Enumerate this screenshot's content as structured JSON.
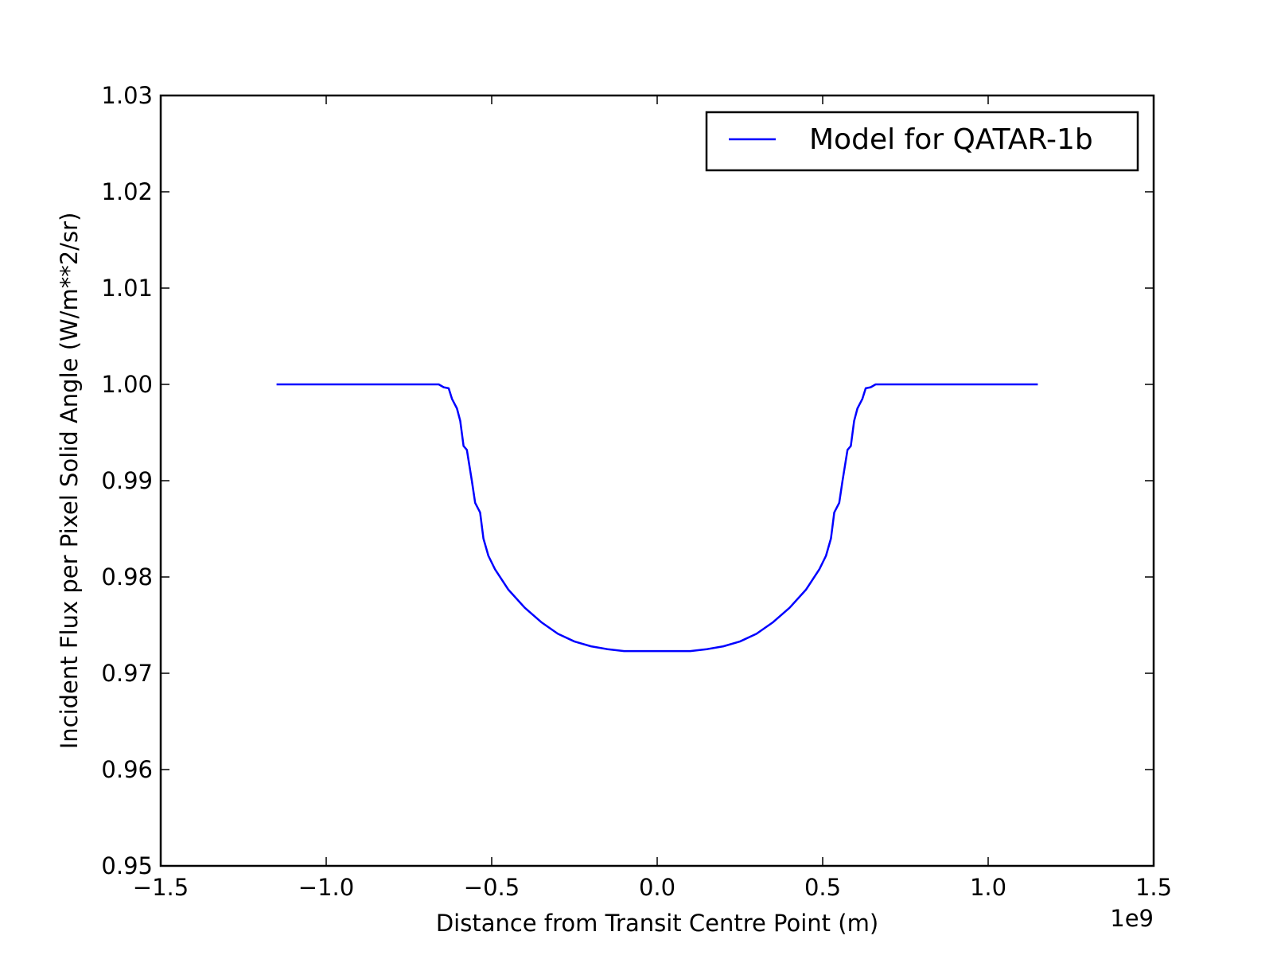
{
  "chart_data": {
    "type": "line",
    "title": "",
    "xlabel": "Distance from Transit Centre Point (m)",
    "ylabel": "Incident Flux per Pixel Solid Angle (W/m**2/sr)",
    "x_offset_text": "1e9",
    "x_scale": 1000000000,
    "xlim": [
      -1.5,
      1.5
    ],
    "ylim": [
      0.95,
      1.03
    ],
    "xticks": [
      -1.5,
      -1.0,
      -0.5,
      0.0,
      0.5,
      1.0,
      1.5
    ],
    "xtick_labels": [
      "−1.5",
      "−1.0",
      "−0.5",
      "0.0",
      "0.5",
      "1.0",
      "1.5"
    ],
    "yticks": [
      0.95,
      0.96,
      0.97,
      0.98,
      0.99,
      1.0,
      1.01,
      1.02,
      1.03
    ],
    "ytick_labels": [
      "0.95",
      "0.96",
      "0.97",
      "0.98",
      "0.99",
      "1.00",
      "1.01",
      "1.02",
      "1.03"
    ],
    "grid": false,
    "legend_position": "top-right",
    "series": [
      {
        "name": "Model for QATAR-1b",
        "color": "#0000ff",
        "x": [
          -1.15,
          -0.66,
          -0.645,
          -0.63,
          -0.62,
          -0.605,
          -0.595,
          -0.585,
          -0.575,
          -0.56,
          -0.55,
          -0.535,
          -0.525,
          -0.51,
          -0.49,
          -0.45,
          -0.4,
          -0.35,
          -0.3,
          -0.25,
          -0.2,
          -0.15,
          -0.1,
          -0.05,
          0.0,
          0.05,
          0.1,
          0.15,
          0.2,
          0.25,
          0.3,
          0.35,
          0.4,
          0.45,
          0.49,
          0.51,
          0.525,
          0.535,
          0.55,
          0.56,
          0.575,
          0.585,
          0.595,
          0.605,
          0.62,
          0.63,
          0.645,
          0.66,
          1.15
        ],
        "y": [
          1.0,
          1.0,
          0.9997,
          0.9996,
          0.9985,
          0.9975,
          0.9962,
          0.9936,
          0.9932,
          0.99,
          0.9877,
          0.9867,
          0.984,
          0.9822,
          0.9808,
          0.9787,
          0.9768,
          0.9753,
          0.9741,
          0.9733,
          0.9728,
          0.9725,
          0.9723,
          0.9723,
          0.9723,
          0.9723,
          0.9723,
          0.9725,
          0.9728,
          0.9733,
          0.9741,
          0.9753,
          0.9768,
          0.9787,
          0.9808,
          0.9822,
          0.984,
          0.9867,
          0.9877,
          0.99,
          0.9932,
          0.9936,
          0.9962,
          0.9975,
          0.9985,
          0.9996,
          0.9997,
          1.0,
          1.0
        ]
      }
    ]
  }
}
